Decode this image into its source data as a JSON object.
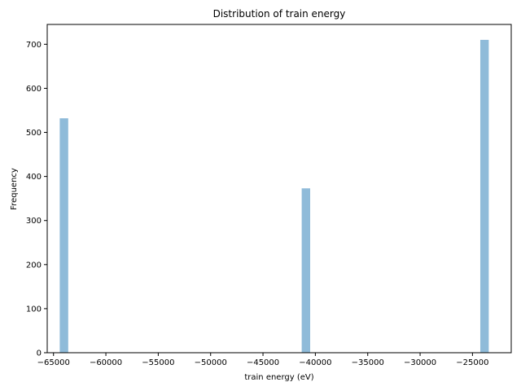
{
  "chart_data": {
    "type": "bar",
    "title": "Distribution of train energy",
    "xlabel": "train energy (eV)",
    "ylabel": "Frequency",
    "xlim": [
      -65600,
      -21300
    ],
    "ylim": [
      0,
      745
    ],
    "xticks": [
      -65000,
      -60000,
      -55000,
      -50000,
      -45000,
      -40000,
      -35000,
      -30000,
      -25000
    ],
    "xtick_labels": [
      "−65000",
      "−60000",
      "−55000",
      "−50000",
      "−45000",
      "−40000",
      "−35000",
      "−30000",
      "−25000"
    ],
    "yticks": [
      0,
      100,
      200,
      300,
      400,
      500,
      600,
      700
    ],
    "ytick_labels": [
      "0",
      "100",
      "200",
      "300",
      "400",
      "500",
      "600",
      "700"
    ],
    "bin_width": 810,
    "bars": [
      {
        "x": -64000,
        "value": 532
      },
      {
        "x": -40900,
        "value": 373
      },
      {
        "x": -23850,
        "value": 710
      }
    ],
    "bar_color": "#8fbbd9",
    "grid": false,
    "legend": "none"
  }
}
